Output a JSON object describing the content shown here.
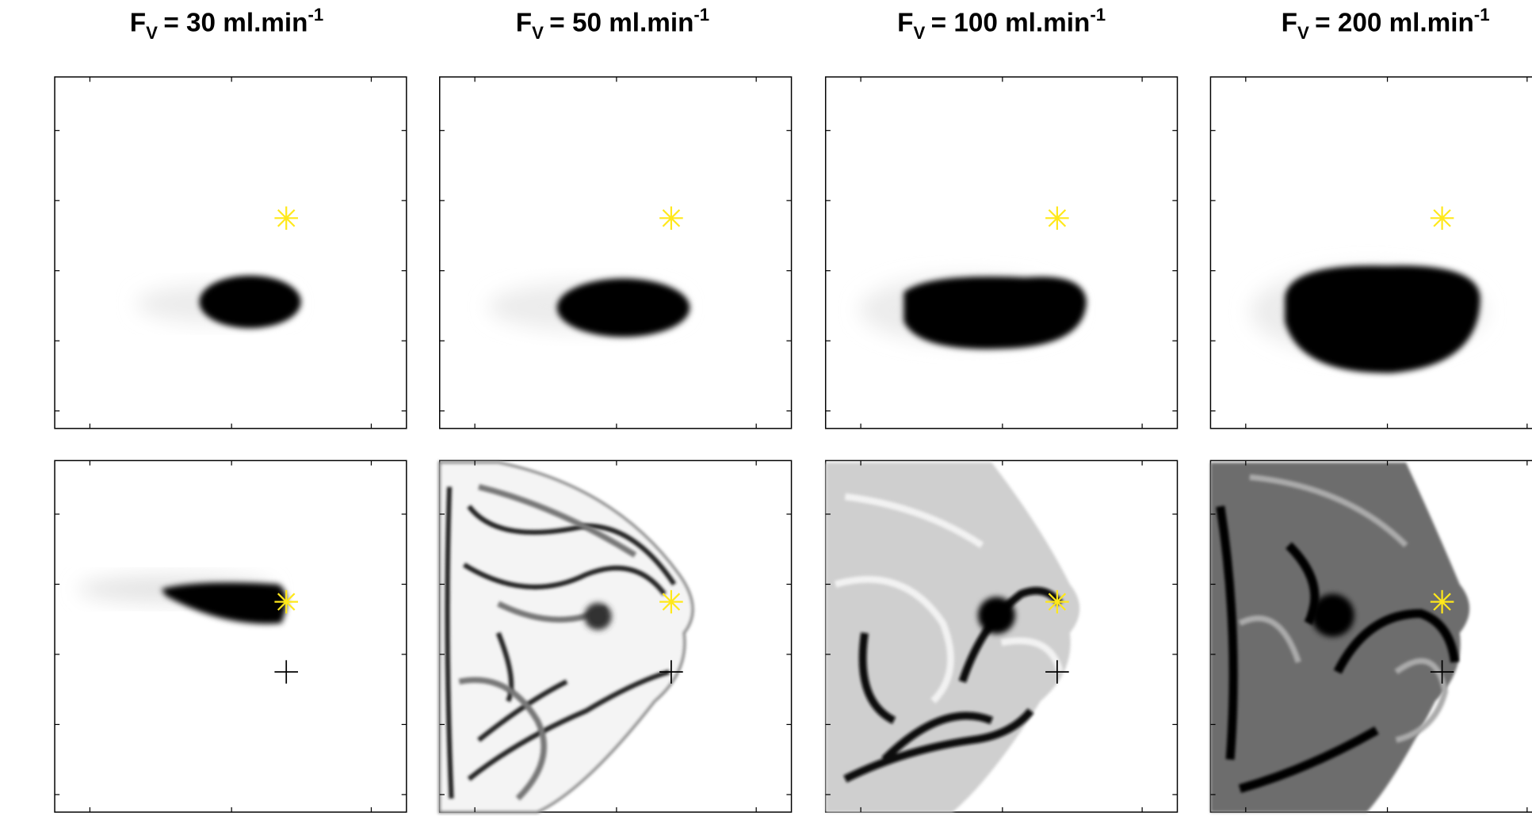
{
  "panels": [
    {
      "title": {
        "symbol": "F",
        "subscript": "V",
        "text": "= 30 ml.min",
        "superscript": "-1"
      }
    },
    {
      "title": {
        "symbol": "F",
        "subscript": "V",
        "text": "= 50 ml.min",
        "superscript": "-1"
      }
    },
    {
      "title": {
        "symbol": "F",
        "subscript": "V",
        "text": "= 100 ml.min",
        "superscript": "-1"
      }
    },
    {
      "title": {
        "symbol": "F",
        "subscript": "V",
        "text": "= 200 ml.min",
        "superscript": "-1"
      }
    }
  ]
}
